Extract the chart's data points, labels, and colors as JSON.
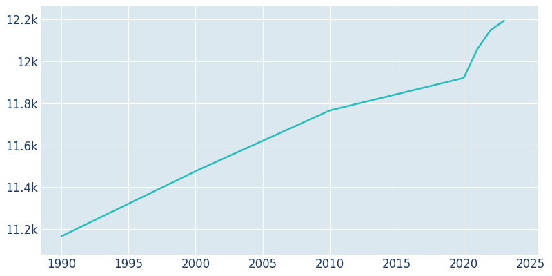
{
  "years": [
    1990,
    2000,
    2010,
    2020,
    2021,
    2022,
    2023
  ],
  "population": [
    11167,
    11477,
    11766,
    11921,
    12057,
    12149,
    12193
  ],
  "line_color": "#2abcbc",
  "line_width": 1.8,
  "bg_color": "#ffffff",
  "plot_bg_color": "#dce8f0",
  "grid_color": "#ffffff",
  "tick_color": "#1a3a6b",
  "xlim": [
    1988.5,
    2025.5
  ],
  "ylim": [
    11080,
    12265
  ],
  "xticks": [
    1990,
    1995,
    2000,
    2005,
    2010,
    2015,
    2020,
    2025
  ],
  "ytick_values": [
    11200,
    11400,
    11600,
    11800,
    12000,
    12200
  ],
  "ytick_labels": [
    "11.2k",
    "11.4k",
    "11.6k",
    "11.8k",
    "12k",
    "12.2k"
  ],
  "tick_fontsize": 12
}
